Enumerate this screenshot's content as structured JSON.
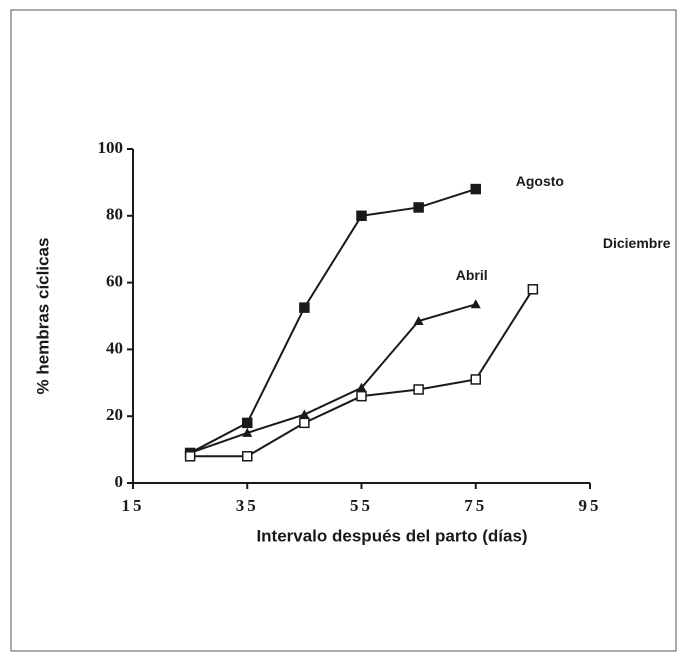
{
  "chart_data": {
    "type": "line",
    "xlabel": "Intervalo después del parto (días)",
    "ylabel": "% hembras cíclicas",
    "xlim": [
      15,
      95
    ],
    "xticks": [
      15,
      35,
      55,
      75,
      95
    ],
    "ylim": [
      0,
      100
    ],
    "yticks": [
      0,
      20,
      40,
      60,
      80,
      100
    ],
    "grid": false,
    "series": [
      {
        "name": "Agosto",
        "color": "#1a1a1a",
        "marker": "filled-square",
        "x": [
          25,
          35,
          45,
          55,
          65,
          75
        ],
        "values": [
          9,
          18,
          52.5,
          80,
          82.5,
          88
        ]
      },
      {
        "name": "Abril",
        "color": "#1a1a1a",
        "marker": "filled-triangle",
        "x": [
          25,
          35,
          45,
          55,
          65,
          75
        ],
        "values": [
          9,
          15,
          20.5,
          28.5,
          48.5,
          53.5
        ]
      },
      {
        "name": "Diciembre",
        "color": "#1a1a1a",
        "marker": "open-square",
        "x": [
          25,
          35,
          45,
          55,
          65,
          75,
          85
        ],
        "values": [
          8,
          8,
          18,
          26,
          28,
          31,
          58
        ]
      }
    ]
  }
}
